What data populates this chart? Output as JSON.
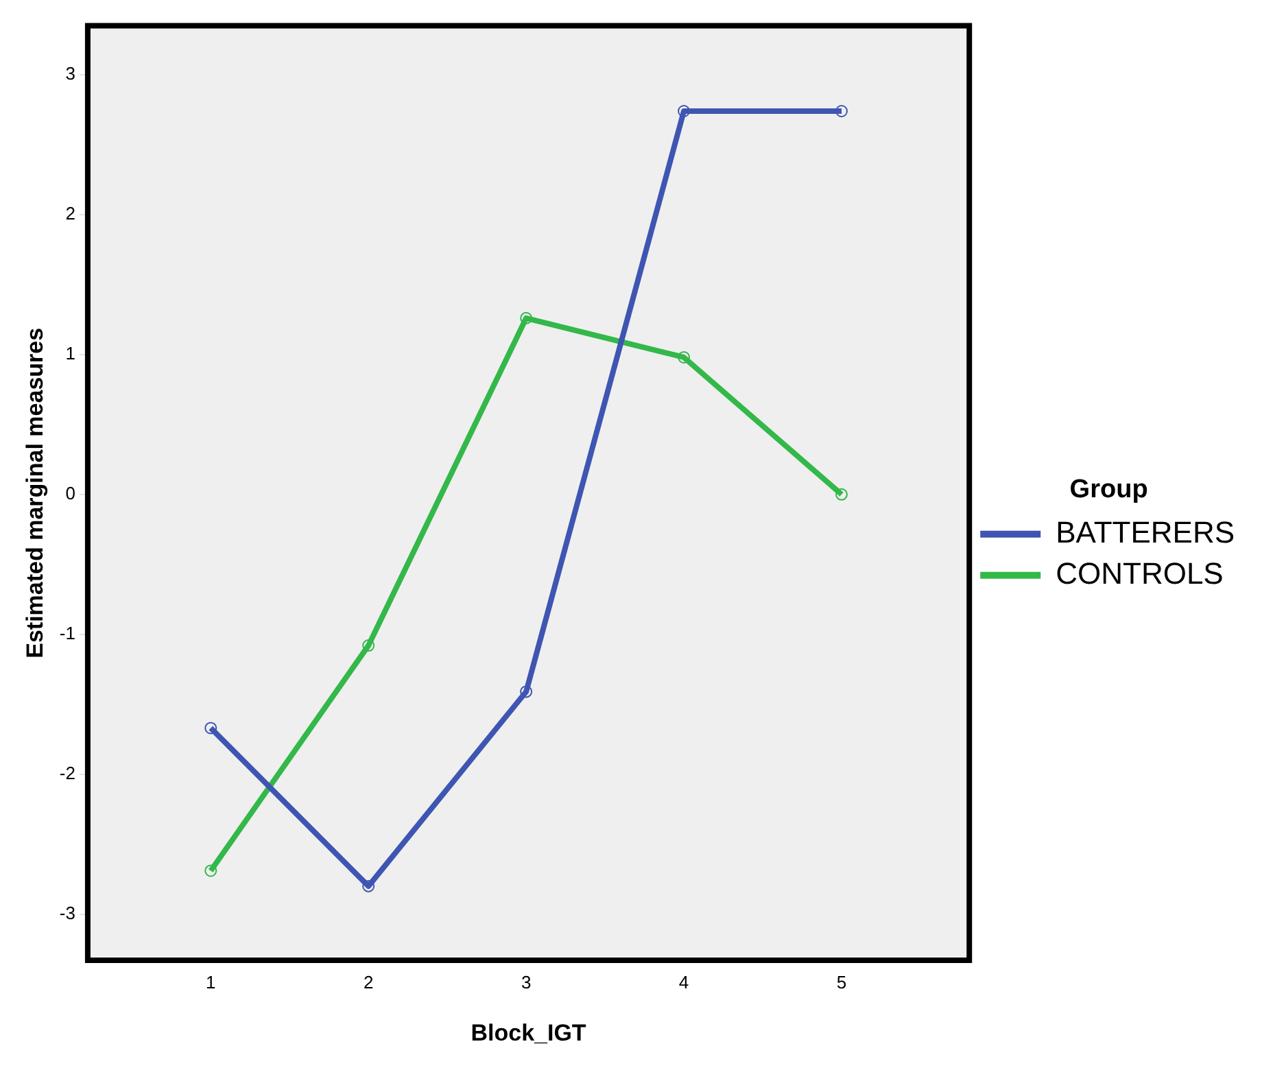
{
  "chart_data": {
    "type": "line",
    "xlabel": "Block_IGT",
    "ylabel": "Estimated marginal measures",
    "legend_title": "Group",
    "x": [
      1,
      2,
      3,
      4,
      5
    ],
    "series": [
      {
        "name": "BATTERERS",
        "color": "#3f55b2",
        "values": [
          -1.67,
          -2.8,
          -1.41,
          2.74,
          2.74
        ]
      },
      {
        "name": "CONTROLS",
        "color": "#33b84a",
        "values": [
          -2.69,
          -1.08,
          1.26,
          0.98,
          0.0
        ]
      }
    ],
    "xlim": [
      0.22,
      5.81
    ],
    "xticks": [
      1,
      2,
      3,
      4,
      5
    ],
    "ylim": [
      -3.33,
      3.35
    ],
    "yticks": [
      -3,
      -2,
      -1,
      0,
      1,
      2,
      3
    ],
    "grid": false,
    "legend": "right",
    "marker": "circle",
    "line_style": "solid"
  }
}
